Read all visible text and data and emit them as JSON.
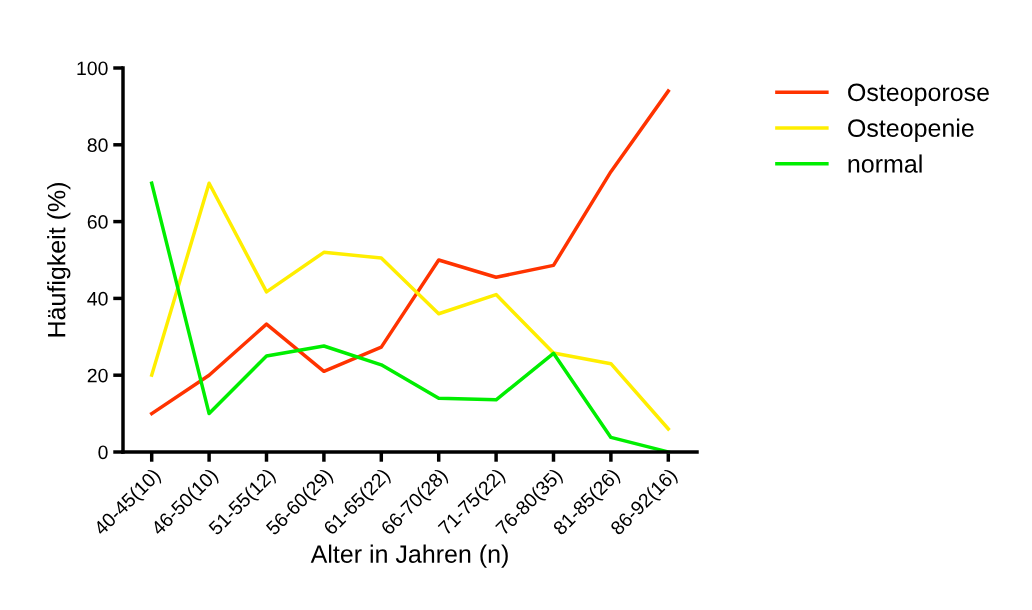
{
  "chart_data": {
    "type": "line",
    "xlabel": "Alter in Jahren (n)",
    "ylabel": "Häufigkeit (%)",
    "categories": [
      "40-45(10)",
      "46-50(10)",
      "51-55(12)",
      "56-60(29)",
      "61-65(22)",
      "66-70(28)",
      "71-75(22)",
      "76-80(35)",
      "81-85(26)",
      "86-92(16)"
    ],
    "series": [
      {
        "name": "Osteoporose",
        "color": "#ff3300",
        "values": [
          10,
          20,
          33.3,
          21,
          27.3,
          50,
          45.5,
          48.6,
          73,
          94
        ]
      },
      {
        "name": "Osteopenie",
        "color": "#ffee00",
        "values": [
          20,
          70,
          41.7,
          52,
          50.5,
          36,
          41,
          25.8,
          23,
          6
        ]
      },
      {
        "name": "normal",
        "color": "#00ee00",
        "values": [
          70,
          10,
          25,
          27.6,
          22.7,
          14,
          13.6,
          25.7,
          3.8,
          0
        ]
      }
    ],
    "ylim": [
      0,
      100
    ],
    "yticks": [
      0,
      20,
      40,
      60,
      80,
      100
    ],
    "grid": false,
    "legend": "top right",
    "marker": "none",
    "line_style": "solid"
  }
}
